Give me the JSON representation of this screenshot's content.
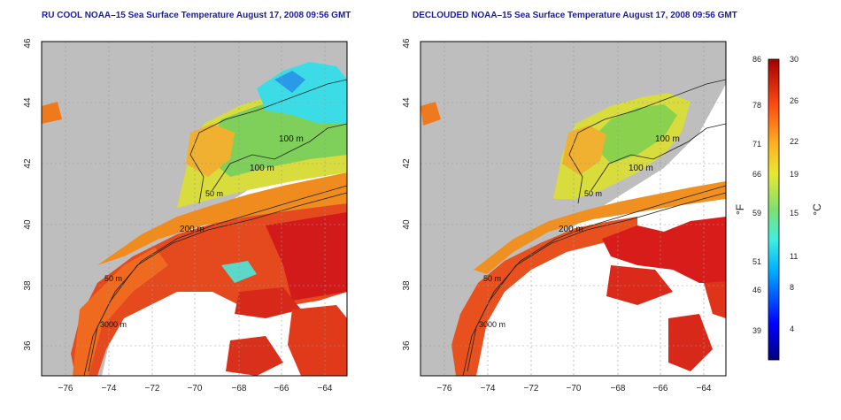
{
  "left_panel": {
    "title": "RU COOL NOAA–15 Sea Surface Temperature August 17, 2008 09:56 GMT",
    "contour_labels": [
      "100 m",
      "100 m",
      "50 m",
      "200 m",
      "50 m",
      "3000 m"
    ]
  },
  "right_panel": {
    "title": "DECLOUDED NOAA–15 Sea Surface Temperature August 17, 2008 09:56 GMT",
    "contour_labels": [
      "100 m",
      "100 m",
      "50 m",
      "200 m",
      "50 m",
      "3000 m"
    ]
  },
  "axes": {
    "lon_ticks": [
      "−76",
      "−74",
      "−72",
      "−70",
      "−68",
      "−66",
      "−64"
    ],
    "lat_ticks": [
      "36",
      "38",
      "40",
      "42",
      "44",
      "46"
    ]
  },
  "colorbar": {
    "fahrenheit_label": "°F",
    "celsius_label": "°C",
    "fahrenheit_ticks": [
      "86",
      "78",
      "71",
      "66",
      "59",
      "51",
      "46",
      "39"
    ],
    "celsius_ticks": [
      "30",
      "26",
      "22",
      "19",
      "15",
      "11",
      "8",
      "4"
    ]
  },
  "colors": {
    "land": "#bebebe",
    "cloud": "#ffffff",
    "title": "#1a1aa6",
    "warm": "#e03a16",
    "hot": "#c8141a",
    "orange": "#f08a1e",
    "yellow": "#e8e03a",
    "green": "#8ad24e",
    "cyan": "#3ce0e8"
  }
}
